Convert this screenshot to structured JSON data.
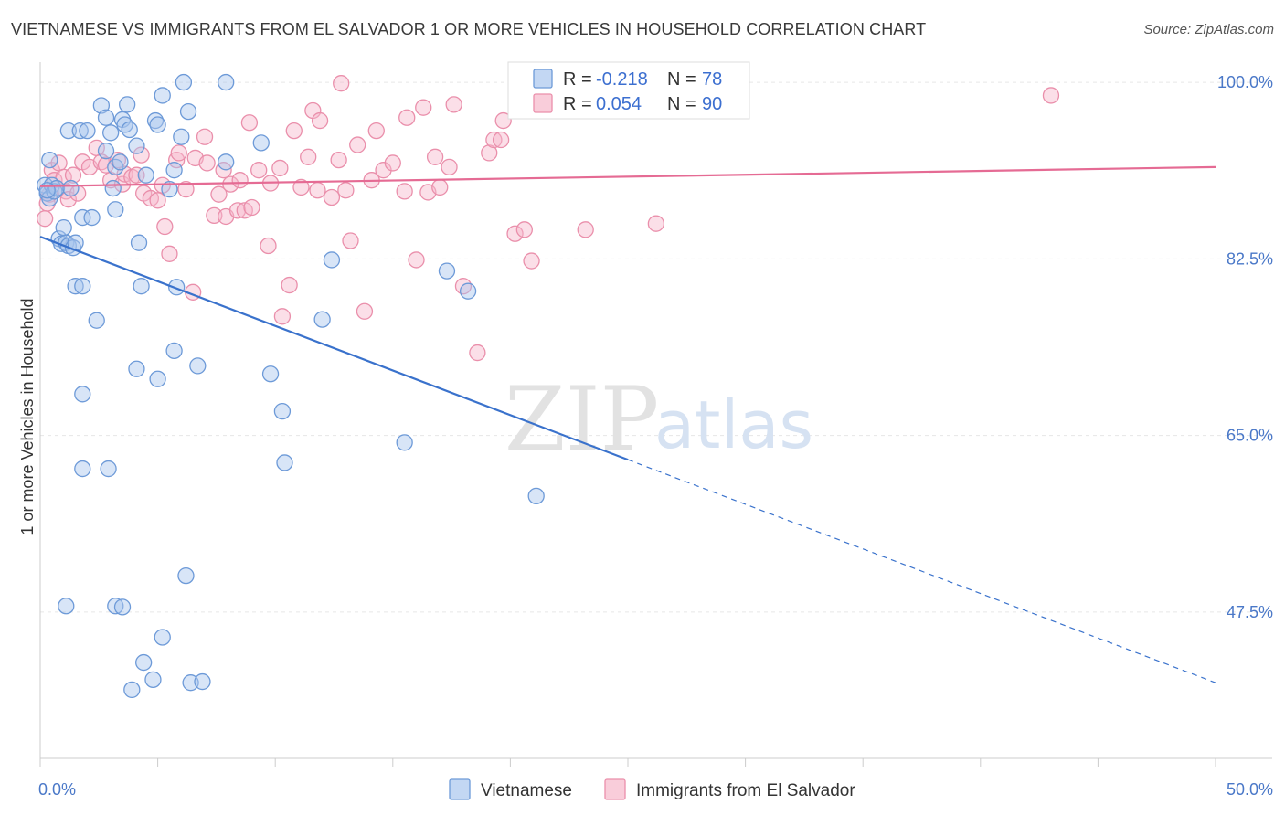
{
  "title": "VIETNAMESE VS IMMIGRANTS FROM EL SALVADOR 1 OR MORE VEHICLES IN HOUSEHOLD CORRELATION CHART",
  "source": "Source: ZipAtlas.com",
  "watermark": {
    "zip": "ZIP",
    "atlas": "atlas"
  },
  "colors": {
    "blue_fill": "#a9c6ee",
    "blue_stroke": "#6d9ad8",
    "blue_line": "#3a72cc",
    "pink_fill": "#f6b8cb",
    "pink_stroke": "#ea8fab",
    "pink_line": "#e56b94",
    "grid": "#e6e6e6",
    "tick_text": "#4a78c8"
  },
  "legend": {
    "rows": [
      {
        "r_label": "R = ",
        "r_value": "-0.218",
        "n_label": "N = ",
        "n_value": "78"
      },
      {
        "r_label": "R = ",
        "r_value": "0.054",
        "n_label": "N = ",
        "n_value": "90"
      }
    ]
  },
  "chart_data": {
    "type": "scatter",
    "title": "VIETNAMESE VS IMMIGRANTS FROM EL SALVADOR 1 OR MORE VEHICLES IN HOUSEHOLD CORRELATION CHART",
    "xlabel": "",
    "ylabel": "1 or more Vehicles in Household",
    "xlim": [
      0,
      50
    ],
    "ylim": [
      33,
      102
    ],
    "x_tick_labels": [
      "0.0%",
      "50.0%"
    ],
    "y_ticks": [
      47.5,
      65.0,
      82.5,
      100.0
    ],
    "y_tick_labels": [
      "47.5%",
      "65.0%",
      "82.5%",
      "100.0%"
    ],
    "grid": true,
    "legend_position": "top-center",
    "series": [
      {
        "name": "Vietnamese",
        "color": "#a9c6ee",
        "r": -0.218,
        "n": 78,
        "trend": {
          "x": [
            0,
            25,
            50
          ],
          "y": [
            84.7,
            62.6,
            40.5
          ],
          "solid_until": 25
        },
        "points": [
          [
            0.2,
            89.8
          ],
          [
            0.3,
            89.0
          ],
          [
            0.4,
            88.5
          ],
          [
            0.5,
            89.8
          ],
          [
            0.6,
            89.2
          ],
          [
            0.4,
            92.3
          ],
          [
            0.7,
            89.5
          ],
          [
            0.8,
            84.5
          ],
          [
            0.9,
            84.0
          ],
          [
            1.0,
            85.6
          ],
          [
            1.1,
            84.1
          ],
          [
            1.2,
            83.8
          ],
          [
            1.3,
            89.5
          ],
          [
            1.4,
            83.6
          ],
          [
            1.5,
            84.1
          ],
          [
            1.2,
            95.2
          ],
          [
            1.7,
            95.2
          ],
          [
            2.0,
            95.2
          ],
          [
            1.5,
            79.8
          ],
          [
            1.8,
            79.8
          ],
          [
            1.8,
            86.6
          ],
          [
            2.2,
            86.6
          ],
          [
            2.4,
            76.4
          ],
          [
            2.6,
            97.7
          ],
          [
            2.8,
            96.5
          ],
          [
            2.8,
            93.2
          ],
          [
            3.0,
            95.0
          ],
          [
            3.1,
            89.5
          ],
          [
            3.2,
            91.6
          ],
          [
            3.2,
            87.4
          ],
          [
            3.4,
            92.1
          ],
          [
            3.5,
            96.3
          ],
          [
            3.6,
            95.8
          ],
          [
            3.8,
            95.3
          ],
          [
            3.7,
            97.8
          ],
          [
            4.1,
            93.7
          ],
          [
            4.2,
            84.1
          ],
          [
            4.3,
            79.8
          ],
          [
            4.5,
            90.8
          ],
          [
            4.9,
            96.2
          ],
          [
            5.0,
            95.8
          ],
          [
            5.2,
            98.7
          ],
          [
            5.5,
            89.4
          ],
          [
            5.7,
            91.3
          ],
          [
            5.7,
            73.4
          ],
          [
            5.8,
            79.7
          ],
          [
            6.0,
            94.6
          ],
          [
            6.1,
            100.0
          ],
          [
            6.3,
            97.1
          ],
          [
            6.7,
            71.9
          ],
          [
            7.9,
            100.0
          ],
          [
            7.9,
            92.1
          ],
          [
            9.4,
            94.0
          ],
          [
            9.8,
            71.1
          ],
          [
            10.3,
            67.4
          ],
          [
            10.4,
            62.3
          ],
          [
            12.4,
            82.4
          ],
          [
            12.0,
            76.5
          ],
          [
            15.5,
            64.3
          ],
          [
            17.3,
            81.3
          ],
          [
            18.2,
            79.3
          ],
          [
            21.1,
            59.0
          ],
          [
            1.8,
            69.1
          ],
          [
            1.8,
            61.7
          ],
          [
            2.9,
            61.7
          ],
          [
            4.1,
            71.6
          ],
          [
            5.0,
            70.6
          ],
          [
            1.1,
            48.1
          ],
          [
            3.2,
            48.1
          ],
          [
            3.5,
            48.0
          ],
          [
            6.2,
            51.1
          ],
          [
            5.2,
            45.0
          ],
          [
            4.4,
            42.5
          ],
          [
            4.8,
            40.8
          ],
          [
            3.9,
            39.8
          ],
          [
            6.4,
            40.5
          ],
          [
            6.9,
            40.6
          ],
          [
            0.3,
            89.3
          ]
        ]
      },
      {
        "name": "Immigrants from El Salvador",
        "color": "#f6b8cb",
        "r": 0.054,
        "n": 90,
        "trend": {
          "x": [
            0,
            50
          ],
          "y": [
            89.7,
            91.6
          ],
          "solid_until": 50
        },
        "points": [
          [
            0.2,
            86.5
          ],
          [
            0.4,
            88.9
          ],
          [
            0.5,
            91.3
          ],
          [
            0.6,
            90.3
          ],
          [
            0.8,
            92.0
          ],
          [
            1.0,
            90.6
          ],
          [
            1.1,
            89.2
          ],
          [
            1.2,
            88.4
          ],
          [
            1.4,
            90.8
          ],
          [
            1.6,
            89.0
          ],
          [
            1.8,
            92.1
          ],
          [
            2.1,
            91.6
          ],
          [
            2.4,
            93.5
          ],
          [
            2.6,
            92.1
          ],
          [
            2.8,
            91.8
          ],
          [
            3.0,
            90.3
          ],
          [
            3.3,
            92.3
          ],
          [
            3.5,
            89.9
          ],
          [
            3.6,
            90.9
          ],
          [
            3.9,
            90.6
          ],
          [
            4.1,
            90.8
          ],
          [
            4.3,
            92.8
          ],
          [
            4.4,
            89.0
          ],
          [
            4.7,
            88.5
          ],
          [
            5.0,
            88.3
          ],
          [
            5.2,
            89.8
          ],
          [
            5.3,
            85.7
          ],
          [
            5.5,
            83.0
          ],
          [
            5.8,
            92.3
          ],
          [
            5.9,
            93.0
          ],
          [
            6.2,
            89.4
          ],
          [
            6.5,
            79.2
          ],
          [
            6.6,
            92.5
          ],
          [
            7.0,
            94.6
          ],
          [
            7.1,
            92.0
          ],
          [
            7.4,
            86.8
          ],
          [
            7.6,
            88.9
          ],
          [
            7.8,
            91.3
          ],
          [
            7.9,
            86.7
          ],
          [
            8.1,
            89.9
          ],
          [
            8.4,
            87.3
          ],
          [
            8.5,
            90.3
          ],
          [
            8.7,
            87.3
          ],
          [
            8.9,
            96.0
          ],
          [
            9.0,
            87.6
          ],
          [
            9.3,
            91.3
          ],
          [
            9.7,
            83.8
          ],
          [
            9.8,
            90.0
          ],
          [
            10.2,
            91.5
          ],
          [
            10.3,
            76.8
          ],
          [
            10.6,
            79.9
          ],
          [
            10.8,
            95.2
          ],
          [
            11.1,
            89.6
          ],
          [
            11.4,
            92.6
          ],
          [
            11.6,
            97.2
          ],
          [
            11.8,
            89.3
          ],
          [
            11.9,
            96.2
          ],
          [
            12.4,
            88.6
          ],
          [
            12.7,
            92.3
          ],
          [
            12.8,
            99.9
          ],
          [
            13.0,
            89.3
          ],
          [
            13.2,
            84.3
          ],
          [
            13.5,
            93.8
          ],
          [
            13.8,
            77.3
          ],
          [
            14.1,
            90.3
          ],
          [
            14.3,
            95.2
          ],
          [
            14.6,
            91.3
          ],
          [
            15.0,
            92.0
          ],
          [
            15.5,
            89.2
          ],
          [
            15.6,
            96.5
          ],
          [
            16.0,
            82.4
          ],
          [
            16.3,
            97.5
          ],
          [
            16.5,
            89.1
          ],
          [
            16.8,
            92.6
          ],
          [
            17.0,
            89.6
          ],
          [
            17.4,
            91.6
          ],
          [
            17.6,
            97.8
          ],
          [
            18.0,
            79.8
          ],
          [
            18.6,
            73.2
          ],
          [
            19.1,
            93.0
          ],
          [
            19.3,
            94.3
          ],
          [
            19.6,
            94.3
          ],
          [
            19.7,
            96.2
          ],
          [
            20.2,
            85.0
          ],
          [
            20.6,
            85.4
          ],
          [
            20.9,
            82.3
          ],
          [
            23.2,
            85.4
          ],
          [
            26.2,
            86.0
          ],
          [
            43.0,
            98.7
          ],
          [
            0.3,
            88.0
          ]
        ]
      }
    ]
  }
}
